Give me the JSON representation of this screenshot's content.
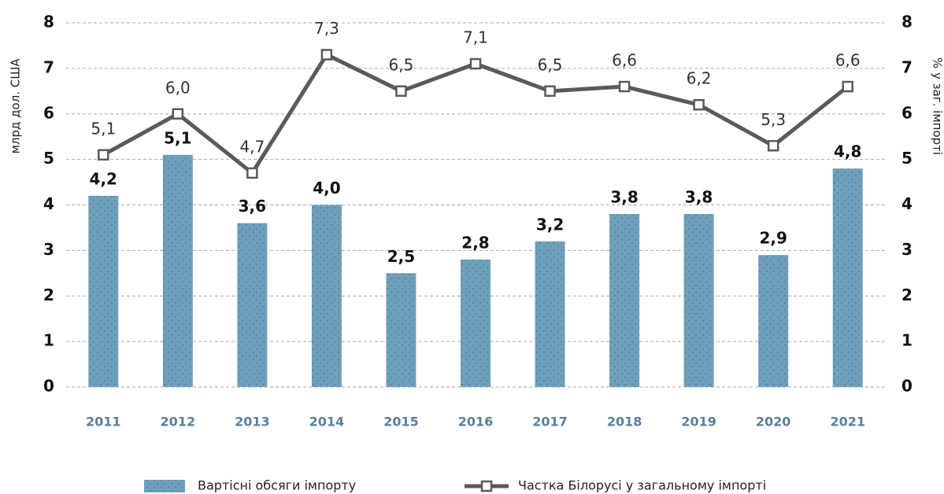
{
  "chart_data": {
    "type": "bar-line",
    "categories": [
      "2011",
      "2012",
      "2013",
      "2014",
      "2015",
      "2016",
      "2017",
      "2018",
      "2019",
      "2020",
      "2021"
    ],
    "series": [
      {
        "name": "Вартісні обсяги імпорту",
        "color": "#6fa0bb",
        "type": "bar",
        "values": [
          4.2,
          5.1,
          3.6,
          4.0,
          2.5,
          2.8,
          3.2,
          3.8,
          3.8,
          2.9,
          4.8
        ],
        "value_labels": [
          "4,2",
          "5,1",
          "3,6",
          "4,0",
          "2,5",
          "2,8",
          "3,2",
          "3,8",
          "3,8",
          "2,9",
          "4,8"
        ]
      },
      {
        "name": "Частка Білорусі у загальному імпорті",
        "color": "#5a5a5a",
        "type": "line",
        "axis": "y2",
        "values": [
          5.1,
          6.0,
          4.7,
          7.3,
          6.5,
          7.1,
          6.5,
          6.6,
          6.2,
          5.3,
          6.6
        ],
        "value_labels": [
          "5,1",
          "6,0",
          "4,7",
          "7,3",
          "6,5",
          "7,1",
          "6,5",
          "6,6",
          "6,2",
          "5,3",
          "6,6"
        ]
      }
    ],
    "ylabel": "млрд дол. США",
    "y2label": "% у заг. імпорті",
    "ylim": [
      0,
      8
    ],
    "yticks": [
      0,
      1,
      2,
      3,
      4,
      5,
      6,
      7,
      8
    ],
    "y2lim": [
      0,
      8
    ],
    "y2ticks": [
      0,
      1,
      2,
      3,
      4,
      5,
      6,
      7,
      8
    ],
    "grid": true,
    "legend": "bottom"
  }
}
